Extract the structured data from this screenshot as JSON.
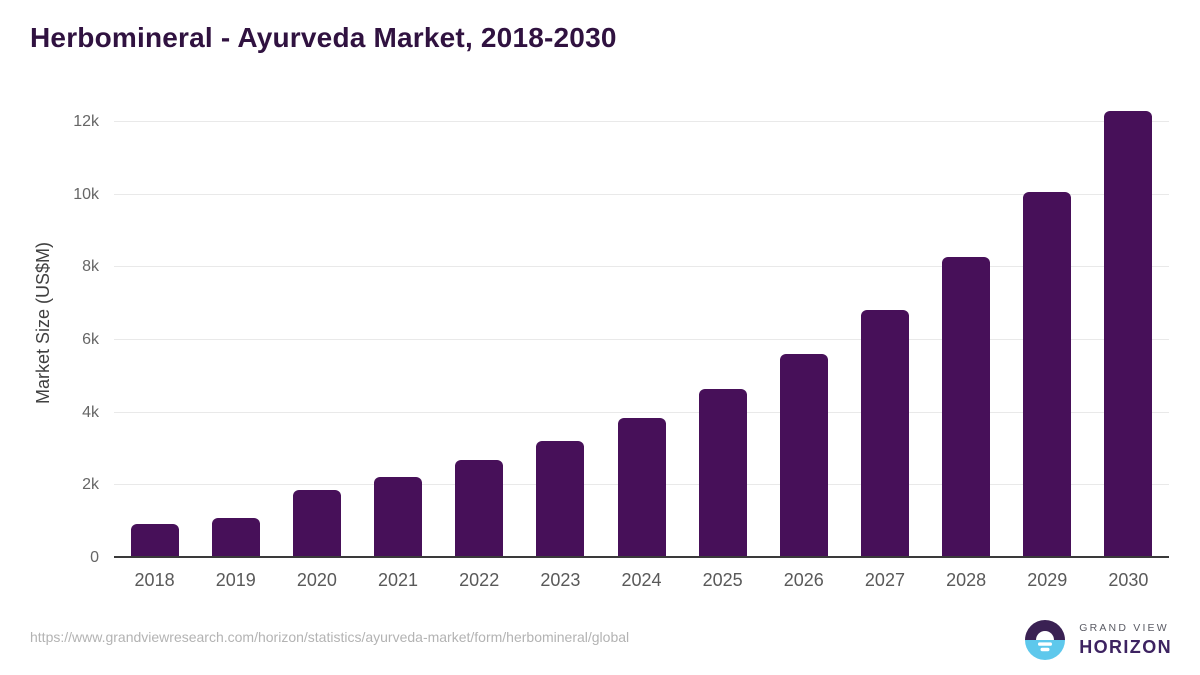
{
  "chart_data": {
    "type": "bar",
    "title": "Herbomineral - Ayurveda Market, 2018-2030",
    "xlabel": "",
    "ylabel": "Market Size (US$M)",
    "categories": [
      "2018",
      "2019",
      "2020",
      "2021",
      "2022",
      "2023",
      "2024",
      "2025",
      "2026",
      "2027",
      "2028",
      "2029",
      "2030"
    ],
    "values": [
      930,
      1100,
      1880,
      2240,
      2690,
      3210,
      3850,
      4650,
      5620,
      6830,
      8280,
      10080,
      12300
    ],
    "ylim": [
      0,
      12400
    ],
    "yticks": [
      {
        "label": "0",
        "value": 0
      },
      {
        "label": "2k",
        "value": 2000
      },
      {
        "label": "4k",
        "value": 4000
      },
      {
        "label": "6k",
        "value": 6000
      },
      {
        "label": "8k",
        "value": 8000
      },
      {
        "label": "10k",
        "value": 10000
      },
      {
        "label": "12k",
        "value": 12000
      }
    ],
    "grid": "horizontal",
    "legend": "none",
    "style": {
      "bar_color": "#471059",
      "title_color": "#301240",
      "gridline_color": "#e9e9e9",
      "axis_line_color": "#3a3a3a",
      "tick_label_color": "#666666"
    }
  },
  "footer": {
    "source_url": "https://www.grandviewresearch.com/horizon/statistics/ayurveda-market/form/herbomineral/global",
    "logo": {
      "line1": "GRAND VIEW",
      "line2": "HORIZON",
      "colors": {
        "purple": "#3a2153",
        "blue": "#5ec8ec",
        "wordmark_purple": "#3d2361"
      }
    }
  }
}
